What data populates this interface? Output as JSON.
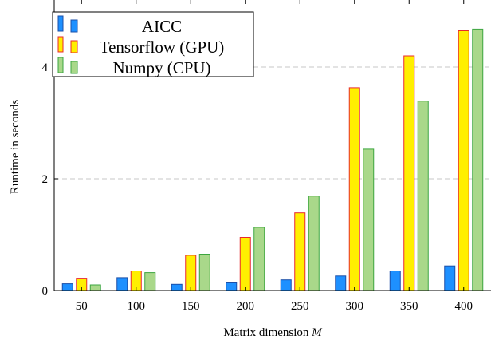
{
  "chart_data": {
    "type": "bar",
    "xlabel": "Matrix dimension",
    "xlabel_var": "M",
    "ylabel": "Runtime in seconds",
    "categories": [
      "50",
      "100",
      "150",
      "200",
      "250",
      "300",
      "350",
      "400"
    ],
    "ylim": [
      0,
      5.2
    ],
    "yticks": [
      0,
      2,
      4
    ],
    "ytick_labels": [
      "0",
      "2",
      "4"
    ],
    "grid": "horizontal dashed at y ticks",
    "legend_position": "top-left",
    "series": [
      {
        "name": "AICC",
        "fill": "#1e90ff",
        "stroke": "#1b4fa8",
        "values": [
          0.12,
          0.23,
          0.11,
          0.15,
          0.19,
          0.26,
          0.35,
          0.44
        ]
      },
      {
        "name": "Tensorflow (GPU)",
        "fill": "#ffef00",
        "stroke": "#e8282d",
        "values": [
          0.22,
          0.35,
          0.63,
          0.95,
          1.39,
          3.63,
          4.2,
          4.65
        ]
      },
      {
        "name": "Numpy (CPU)",
        "fill": "#a9d88a",
        "stroke": "#3ca640",
        "values": [
          0.1,
          0.32,
          0.65,
          1.13,
          1.69,
          2.53,
          3.39,
          4.68
        ]
      }
    ]
  }
}
